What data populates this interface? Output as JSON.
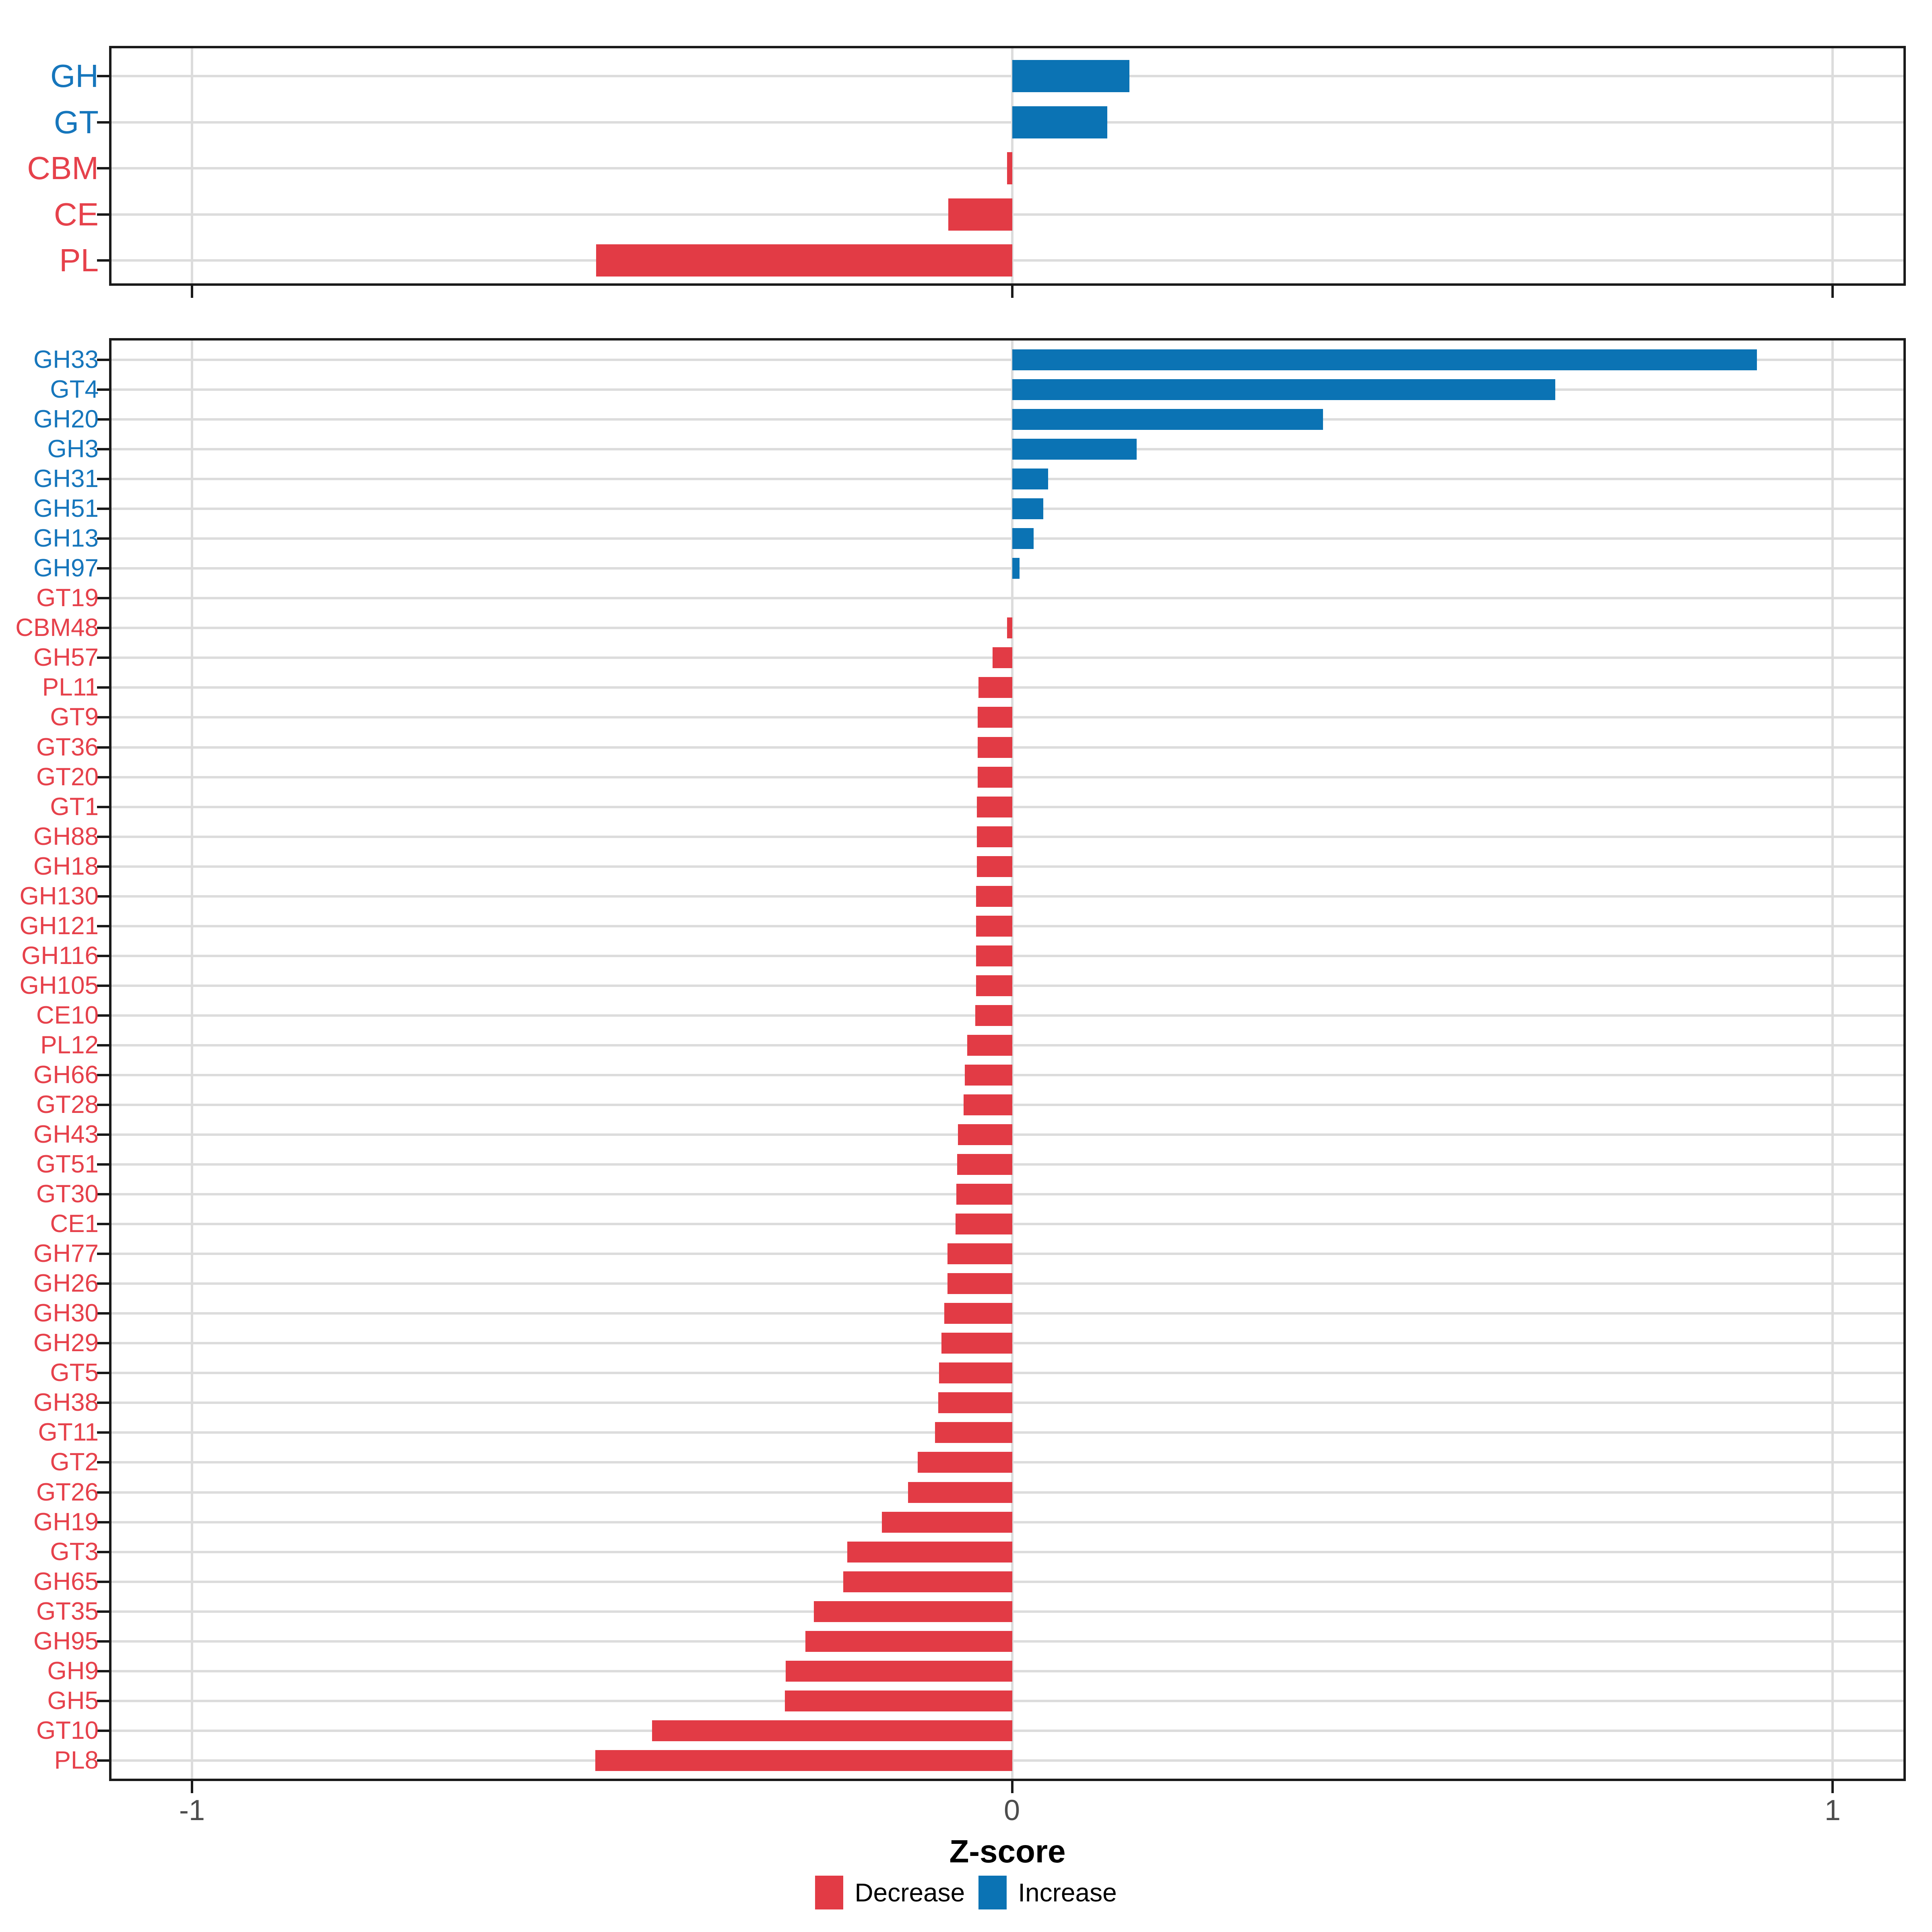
{
  "axis": {
    "title": "Z-score",
    "ticks": [
      {
        "label": "-1",
        "value": -1
      },
      {
        "label": "0",
        "value": 0
      },
      {
        "label": "1",
        "value": 1
      }
    ],
    "xmin_data": -1,
    "xmax_data": 1
  },
  "legend": {
    "decrease_label": "Decrease",
    "increase_label": "Increase"
  },
  "colors": {
    "increase": "#0b73b4",
    "decrease": "#e23b45",
    "increase_label_text": "#1676bc",
    "decrease_label_text": "#e6414b",
    "grid": "#dcdcdc",
    "panel_border": "#1a1a1a",
    "tick": "#1a1a1a",
    "tick_label_text": "#4d4d4d",
    "background": "#ffffff"
  },
  "top_panel_rows": [
    {
      "label": "GH",
      "value": 0.143,
      "group": "increase"
    },
    {
      "label": "GT",
      "value": 0.116,
      "group": "increase"
    },
    {
      "label": "CBM",
      "value": -0.006,
      "group": "decrease"
    },
    {
      "label": "CE",
      "value": -0.078,
      "group": "decrease"
    },
    {
      "label": "PL",
      "value": -0.507,
      "group": "decrease"
    }
  ],
  "bottom_panel_rows": [
    {
      "label": "GH33",
      "value": 0.908,
      "group": "increase"
    },
    {
      "label": "GT4",
      "value": 0.662,
      "group": "increase"
    },
    {
      "label": "GH20",
      "value": 0.379,
      "group": "increase"
    },
    {
      "label": "GH3",
      "value": 0.152,
      "group": "increase"
    },
    {
      "label": "GH31",
      "value": 0.044,
      "group": "increase"
    },
    {
      "label": "GH51",
      "value": 0.038,
      "group": "increase"
    },
    {
      "label": "GH13",
      "value": 0.026,
      "group": "increase"
    },
    {
      "label": "GH97",
      "value": 0.009,
      "group": "increase"
    },
    {
      "label": "GT19",
      "value": 0.0,
      "group": "decrease"
    },
    {
      "label": "CBM48",
      "value": -0.006,
      "group": "decrease"
    },
    {
      "label": "GH57",
      "value": -0.024,
      "group": "decrease"
    },
    {
      "label": "PL11",
      "value": -0.041,
      "group": "decrease"
    },
    {
      "label": "GT9",
      "value": -0.042,
      "group": "decrease"
    },
    {
      "label": "GT36",
      "value": -0.042,
      "group": "decrease"
    },
    {
      "label": "GT20",
      "value": -0.042,
      "group": "decrease"
    },
    {
      "label": "GT1",
      "value": -0.043,
      "group": "decrease"
    },
    {
      "label": "GH88",
      "value": -0.043,
      "group": "decrease"
    },
    {
      "label": "GH18",
      "value": -0.043,
      "group": "decrease"
    },
    {
      "label": "GH130",
      "value": -0.044,
      "group": "decrease"
    },
    {
      "label": "GH121",
      "value": -0.044,
      "group": "decrease"
    },
    {
      "label": "GH116",
      "value": -0.044,
      "group": "decrease"
    },
    {
      "label": "GH105",
      "value": -0.044,
      "group": "decrease"
    },
    {
      "label": "CE10",
      "value": -0.045,
      "group": "decrease"
    },
    {
      "label": "PL12",
      "value": -0.055,
      "group": "decrease"
    },
    {
      "label": "GH66",
      "value": -0.058,
      "group": "decrease"
    },
    {
      "label": "GT28",
      "value": -0.059,
      "group": "decrease"
    },
    {
      "label": "GH43",
      "value": -0.066,
      "group": "decrease"
    },
    {
      "label": "GT51",
      "value": -0.067,
      "group": "decrease"
    },
    {
      "label": "GT30",
      "value": -0.068,
      "group": "decrease"
    },
    {
      "label": "CE1",
      "value": -0.069,
      "group": "decrease"
    },
    {
      "label": "GH77",
      "value": -0.079,
      "group": "decrease"
    },
    {
      "label": "GH26",
      "value": -0.079,
      "group": "decrease"
    },
    {
      "label": "GH30",
      "value": -0.083,
      "group": "decrease"
    },
    {
      "label": "GH29",
      "value": -0.086,
      "group": "decrease"
    },
    {
      "label": "GT5",
      "value": -0.089,
      "group": "decrease"
    },
    {
      "label": "GH38",
      "value": -0.09,
      "group": "decrease"
    },
    {
      "label": "GT11",
      "value": -0.094,
      "group": "decrease"
    },
    {
      "label": "GT2",
      "value": -0.115,
      "group": "decrease"
    },
    {
      "label": "GT26",
      "value": -0.127,
      "group": "decrease"
    },
    {
      "label": "GH19",
      "value": -0.159,
      "group": "decrease"
    },
    {
      "label": "GT3",
      "value": -0.201,
      "group": "decrease"
    },
    {
      "label": "GH65",
      "value": -0.206,
      "group": "decrease"
    },
    {
      "label": "GT35",
      "value": -0.242,
      "group": "decrease"
    },
    {
      "label": "GH95",
      "value": -0.252,
      "group": "decrease"
    },
    {
      "label": "GH9",
      "value": -0.276,
      "group": "decrease"
    },
    {
      "label": "GH5",
      "value": -0.277,
      "group": "decrease"
    },
    {
      "label": "GT10",
      "value": -0.439,
      "group": "decrease"
    },
    {
      "label": "PL8",
      "value": -0.508,
      "group": "decrease"
    }
  ],
  "chart_data": [
    {
      "type": "bar",
      "orientation": "horizontal",
      "panel": "top",
      "categories": [
        "GH",
        "GT",
        "CBM",
        "CE",
        "PL"
      ],
      "values": [
        0.143,
        0.116,
        -0.006,
        -0.078,
        -0.507
      ],
      "title": "",
      "xlabel": "Z-score",
      "ylabel": "",
      "xlim": [
        -1.09,
        1.09
      ],
      "x_breaks": [
        -1,
        0,
        1
      ],
      "grid": true,
      "legend_position": "bottom",
      "series_rule": "negative values = Decrease (red), positive values = Increase (blue)"
    },
    {
      "type": "bar",
      "orientation": "horizontal",
      "panel": "bottom",
      "categories": [
        "GH33",
        "GT4",
        "GH20",
        "GH3",
        "GH31",
        "GH51",
        "GH13",
        "GH97",
        "GT19",
        "CBM48",
        "GH57",
        "PL11",
        "GT9",
        "GT36",
        "GT20",
        "GT1",
        "GH88",
        "GH18",
        "GH130",
        "GH121",
        "GH116",
        "GH105",
        "CE10",
        "PL12",
        "GH66",
        "GT28",
        "GH43",
        "GT51",
        "GT30",
        "CE1",
        "GH77",
        "GH26",
        "GH30",
        "GH29",
        "GT5",
        "GH38",
        "GT11",
        "GT2",
        "GT26",
        "GH19",
        "GT3",
        "GH65",
        "GT35",
        "GH95",
        "GH9",
        "GH5",
        "GT10",
        "PL8"
      ],
      "values": [
        0.908,
        0.662,
        0.379,
        0.152,
        0.044,
        0.038,
        0.026,
        0.009,
        0.0,
        -0.006,
        -0.024,
        -0.041,
        -0.042,
        -0.042,
        -0.042,
        -0.043,
        -0.043,
        -0.043,
        -0.044,
        -0.044,
        -0.044,
        -0.044,
        -0.045,
        -0.055,
        -0.058,
        -0.059,
        -0.066,
        -0.067,
        -0.068,
        -0.069,
        -0.079,
        -0.079,
        -0.083,
        -0.086,
        -0.089,
        -0.09,
        -0.094,
        -0.115,
        -0.127,
        -0.159,
        -0.201,
        -0.206,
        -0.242,
        -0.252,
        -0.276,
        -0.277,
        -0.439,
        -0.508
      ],
      "title": "",
      "xlabel": "Z-score",
      "ylabel": "",
      "xlim": [
        -1.09,
        1.09
      ],
      "x_breaks": [
        -1,
        0,
        1
      ],
      "grid": true,
      "legend_position": "bottom",
      "series_rule": "negative values = Decrease (red), positive values = Increase (blue)"
    }
  ]
}
